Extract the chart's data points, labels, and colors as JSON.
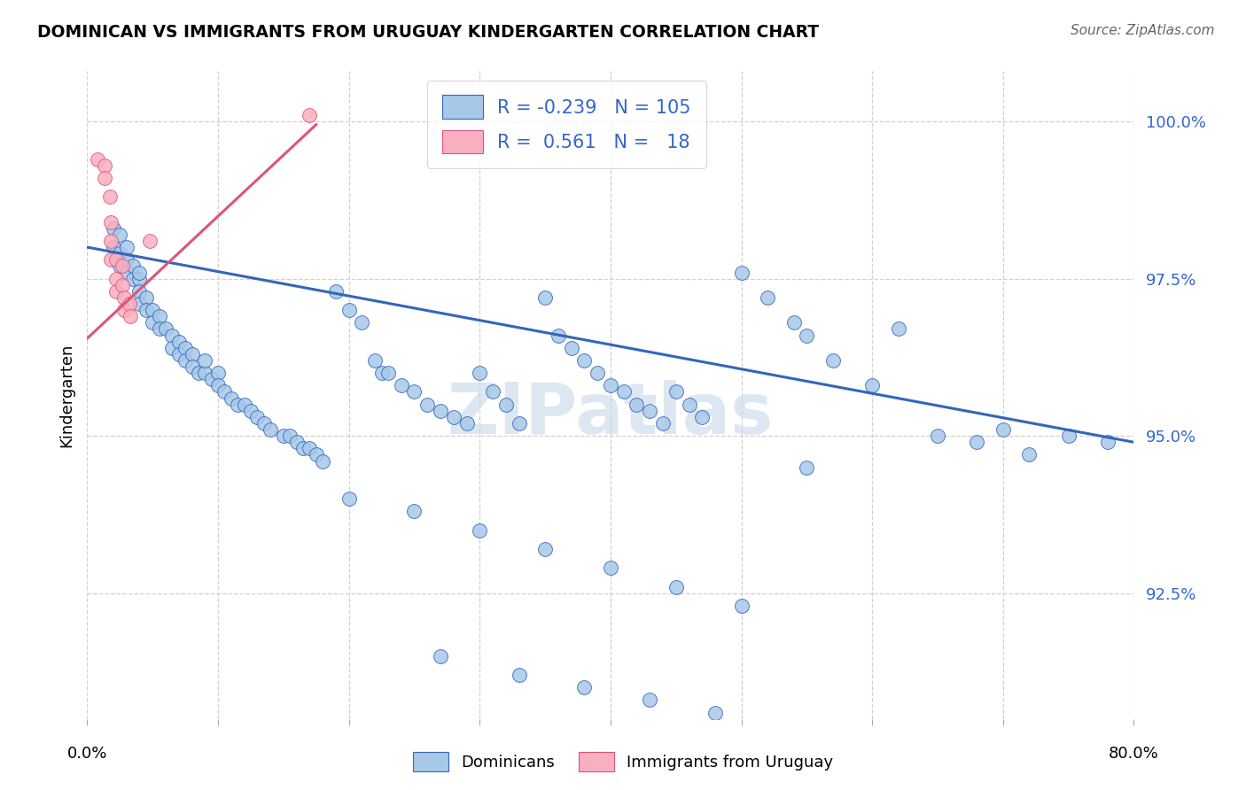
{
  "title": "DOMINICAN VS IMMIGRANTS FROM URUGUAY KINDERGARTEN CORRELATION CHART",
  "source": "Source: ZipAtlas.com",
  "ylabel": "Kindergarten",
  "ytick_values": [
    1.0,
    0.975,
    0.95,
    0.925
  ],
  "xlim": [
    0.0,
    0.8
  ],
  "ylim": [
    0.905,
    1.008
  ],
  "legend_blue_R": "-0.239",
  "legend_blue_N": "105",
  "legend_pink_R": "0.561",
  "legend_pink_N": "18",
  "blue_color": "#a8c8e8",
  "blue_line_color": "#3366bb",
  "pink_color": "#f8b0c0",
  "pink_line_color": "#dd5577",
  "blue_dots_x": [
    0.02,
    0.02,
    0.025,
    0.025,
    0.025,
    0.03,
    0.03,
    0.03,
    0.035,
    0.035,
    0.04,
    0.04,
    0.04,
    0.04,
    0.045,
    0.045,
    0.05,
    0.05,
    0.055,
    0.055,
    0.06,
    0.065,
    0.065,
    0.07,
    0.07,
    0.075,
    0.075,
    0.08,
    0.08,
    0.085,
    0.09,
    0.09,
    0.095,
    0.1,
    0.1,
    0.105,
    0.11,
    0.115,
    0.12,
    0.125,
    0.13,
    0.135,
    0.14,
    0.15,
    0.155,
    0.16,
    0.165,
    0.17,
    0.175,
    0.18,
    0.19,
    0.2,
    0.21,
    0.22,
    0.225,
    0.23,
    0.24,
    0.25,
    0.26,
    0.27,
    0.28,
    0.29,
    0.3,
    0.31,
    0.32,
    0.33,
    0.35,
    0.36,
    0.37,
    0.38,
    0.39,
    0.4,
    0.41,
    0.42,
    0.43,
    0.44,
    0.45,
    0.46,
    0.47,
    0.5,
    0.52,
    0.54,
    0.55,
    0.57,
    0.6,
    0.62,
    0.65,
    0.68,
    0.7,
    0.72,
    0.75,
    0.78,
    0.2,
    0.25,
    0.3,
    0.35,
    0.4,
    0.45,
    0.5,
    0.55,
    0.27,
    0.33,
    0.38,
    0.43,
    0.48
  ],
  "blue_dots_y": [
    0.98,
    0.983,
    0.979,
    0.977,
    0.982,
    0.978,
    0.976,
    0.98,
    0.975,
    0.977,
    0.975,
    0.973,
    0.976,
    0.971,
    0.972,
    0.97,
    0.97,
    0.968,
    0.969,
    0.967,
    0.967,
    0.966,
    0.964,
    0.965,
    0.963,
    0.964,
    0.962,
    0.963,
    0.961,
    0.96,
    0.96,
    0.962,
    0.959,
    0.96,
    0.958,
    0.957,
    0.956,
    0.955,
    0.955,
    0.954,
    0.953,
    0.952,
    0.951,
    0.95,
    0.95,
    0.949,
    0.948,
    0.948,
    0.947,
    0.946,
    0.973,
    0.97,
    0.968,
    0.962,
    0.96,
    0.96,
    0.958,
    0.957,
    0.955,
    0.954,
    0.953,
    0.952,
    0.96,
    0.957,
    0.955,
    0.952,
    0.972,
    0.966,
    0.964,
    0.962,
    0.96,
    0.958,
    0.957,
    0.955,
    0.954,
    0.952,
    0.957,
    0.955,
    0.953,
    0.976,
    0.972,
    0.968,
    0.966,
    0.962,
    0.958,
    0.967,
    0.95,
    0.949,
    0.951,
    0.947,
    0.95,
    0.949,
    0.94,
    0.938,
    0.935,
    0.932,
    0.929,
    0.926,
    0.923,
    0.945,
    0.915,
    0.912,
    0.91,
    0.908,
    0.906
  ],
  "pink_dots_x": [
    0.008,
    0.013,
    0.013,
    0.017,
    0.018,
    0.018,
    0.018,
    0.022,
    0.022,
    0.022,
    0.027,
    0.027,
    0.028,
    0.028,
    0.032,
    0.033,
    0.048,
    0.17
  ],
  "pink_dots_y": [
    0.994,
    0.993,
    0.991,
    0.988,
    0.984,
    0.981,
    0.978,
    0.978,
    0.975,
    0.973,
    0.977,
    0.974,
    0.972,
    0.97,
    0.971,
    0.969,
    0.981,
    1.001
  ],
  "blue_trendline_x": [
    0.0,
    0.8
  ],
  "blue_trendline_y": [
    0.98,
    0.949
  ],
  "pink_trendline_x": [
    0.0,
    0.175
  ],
  "pink_trendline_y": [
    0.9655,
    0.9995
  ],
  "watermark": "ZIPatlas",
  "background_color": "#ffffff",
  "grid_color": "#d0d0d0"
}
